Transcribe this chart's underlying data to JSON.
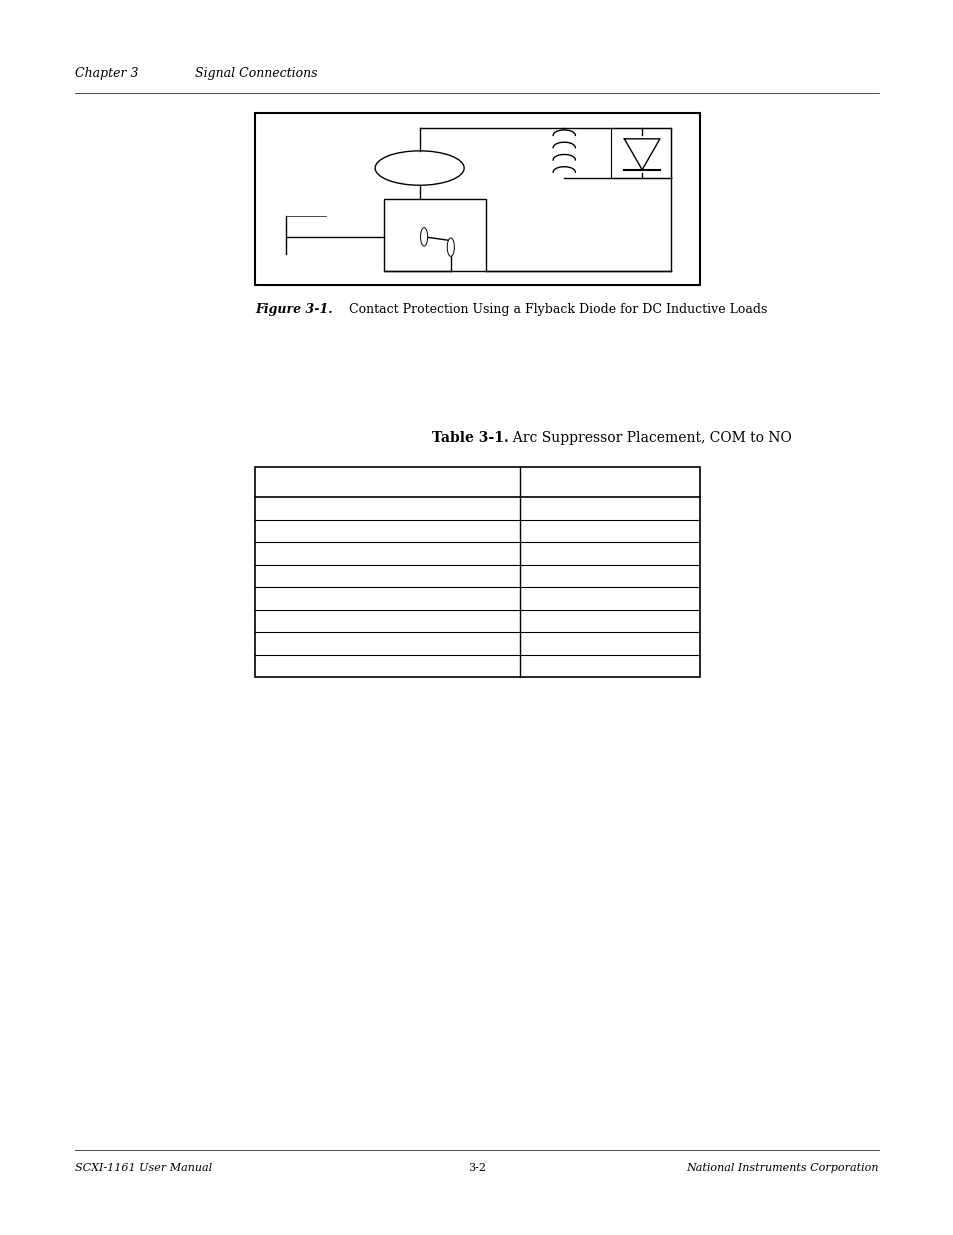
{
  "bg_color": "#ffffff",
  "page_width": 9.54,
  "page_height": 12.35,
  "header_text_1": "Chapter 3",
  "header_text_2": "Signal Connections",
  "figure_caption_bold": "Figure 3-1.",
  "figure_caption_normal": "   Contact Protection Using a Flyback Diode for DC Inductive Loads",
  "table_title_bold": "Table 3-1.",
  "table_title_normal": "  Arc Suppressor Placement, COM to NO",
  "footer_left": "SCXI-1161 User Manual",
  "footer_center": "3-2",
  "footer_right": "National Instruments Corporation",
  "font_size_header": 9,
  "font_size_caption": 9,
  "font_size_table_title": 10,
  "font_size_footer": 8
}
